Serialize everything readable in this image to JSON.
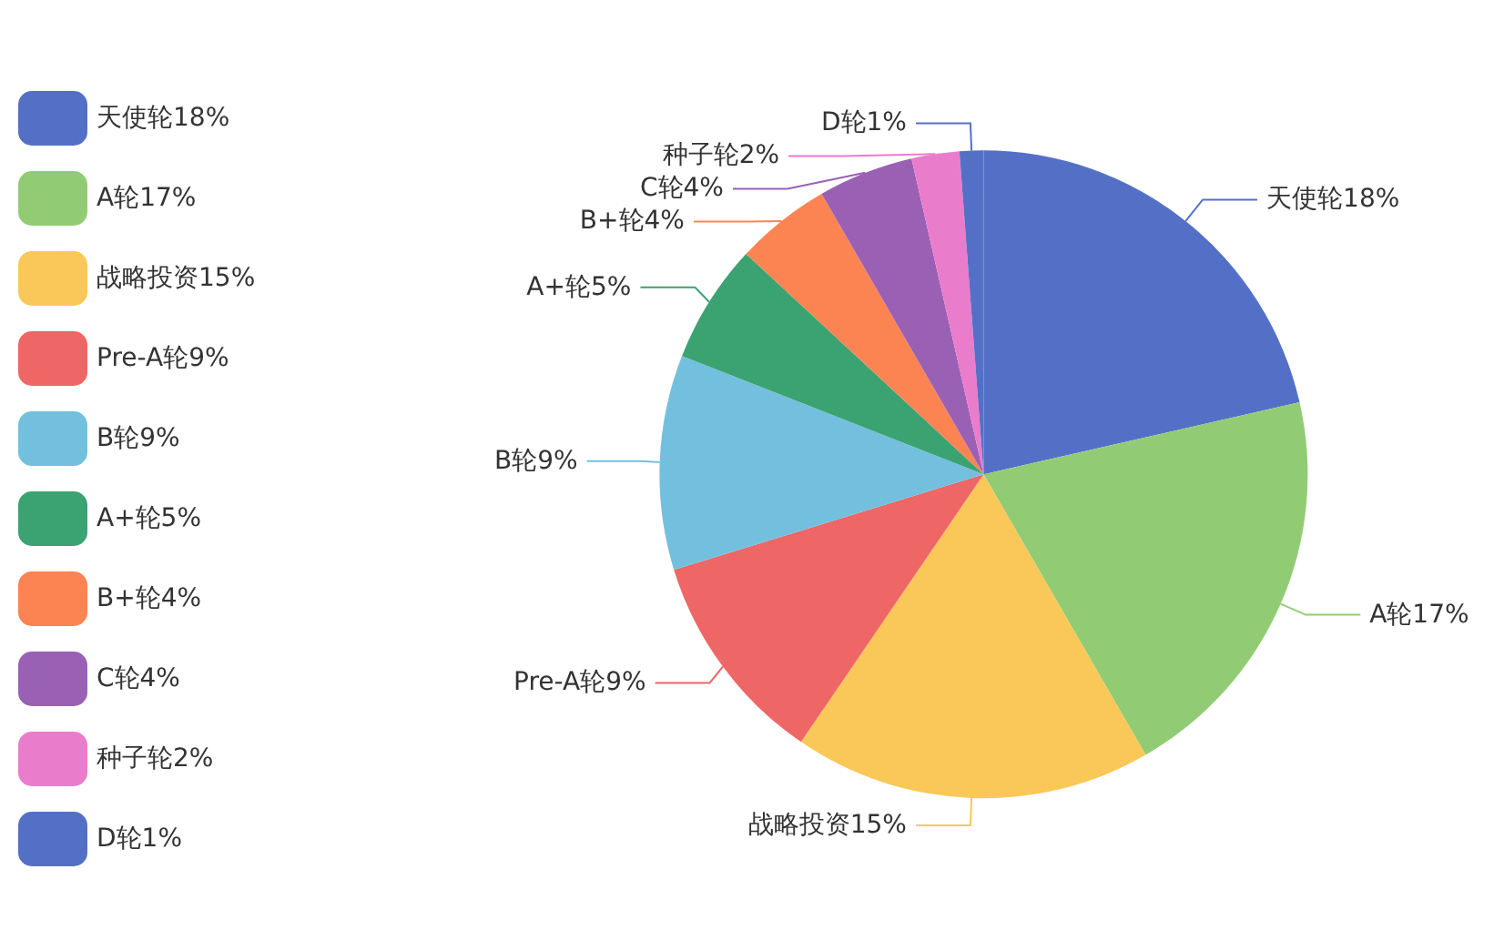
{
  "chart_data": {
    "type": "pie",
    "categories": [
      "天使轮",
      "A轮",
      "战略投资",
      "Pre-A轮",
      "B轮",
      "A+轮",
      "B+轮",
      "C轮",
      "种子轮",
      "D轮"
    ],
    "values": [
      18,
      17,
      15,
      9,
      9,
      5,
      4,
      4,
      2,
      1
    ],
    "value_labels": [
      "18%",
      "17%",
      "15%",
      "9%",
      "9%",
      "5%",
      "4%",
      "4%",
      "2%",
      "1%"
    ],
    "colors": [
      "#5470c6",
      "#91cc75",
      "#fac858",
      "#ee6666",
      "#73c0de",
      "#3ba272",
      "#fc8452",
      "#9a60b4",
      "#ea7ccc",
      "#5470c6"
    ],
    "legend": "left"
  }
}
